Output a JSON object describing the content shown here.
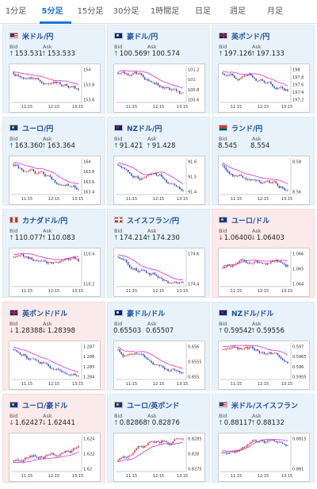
{
  "tabs": [
    {
      "label": "1分足",
      "active": false
    },
    {
      "label": "5分足",
      "active": true
    },
    {
      "label": "15分足",
      "active": false
    },
    {
      "label": "30分足",
      "active": false
    },
    {
      "label": "1時間足",
      "active": false
    },
    {
      "label": "日足",
      "active": false
    },
    {
      "label": "週足",
      "active": false
    },
    {
      "label": "月足",
      "active": false
    }
  ],
  "labels": {
    "bid": "Bid",
    "ask": "Ask"
  },
  "colors": {
    "accent": "#1a73d9",
    "up": "#2a8a4a",
    "down": "#d0403a",
    "up_card": "#e8f2fb",
    "down_card": "#fbeaea",
    "ma_line": "#d52bd5",
    "candle_up": "#e0302a",
    "candle_down": "#2a47c7"
  },
  "pairs": [
    {
      "name": "米ドル/円",
      "flag": "us-flag",
      "bid": "153.531",
      "ask": "153.533",
      "dir": "up",
      "times": [
        "11:15",
        "12:15",
        "13:15"
      ],
      "yticks": [
        "154",
        "153.8",
        "153.6"
      ],
      "trend": "down"
    },
    {
      "name": "豪ドル/円",
      "flag": "au-flag",
      "bid": "100.569",
      "ask": "100.574",
      "dir": "up",
      "times": [
        "11:15",
        "12:15",
        "13:15"
      ],
      "yticks": [
        "101.2",
        "101",
        "100.8",
        "100.6"
      ],
      "trend": "down"
    },
    {
      "name": "英ポンド/円",
      "flag": "uk-flag",
      "bid": "197.126",
      "ask": "197.133",
      "dir": "up",
      "times": [
        "11:15",
        "12:15",
        "13:15"
      ],
      "yticks": [
        "198",
        "197.8",
        "197.6",
        "197.4",
        "197.2"
      ],
      "trend": "down"
    },
    {
      "name": "ユーロ/円",
      "flag": "eu-flag",
      "bid": "163.360",
      "ask": "163.364",
      "dir": "up",
      "times": [
        "11:15",
        "12:15",
        "13:15"
      ],
      "yticks": [
        "164",
        "163.8",
        "163.6",
        "163.4"
      ],
      "trend": "down"
    },
    {
      "name": "NZドル/円",
      "flag": "nz-flag",
      "bid": "91.421",
      "ask": "91.428",
      "dir": "up",
      "times": [
        "11:15",
        "12:15",
        "13:15"
      ],
      "yticks": [
        "91.6",
        "91.5",
        "91.4"
      ],
      "trend": "down"
    },
    {
      "name": "ランド/円",
      "flag": "za-flag",
      "bid": "8.545",
      "ask": "8.554",
      "dir": "none",
      "times": [
        "11:15",
        "12:15",
        "13:15"
      ],
      "yticks": [
        "8.58",
        "8.56"
      ],
      "trend": "down"
    },
    {
      "name": "カナダドル/円",
      "flag": "ca-flag",
      "bid": "110.077",
      "ask": "110.083",
      "dir": "up",
      "times": [
        "11:15",
        "12:15",
        "13:15"
      ],
      "yticks": [
        "110.4",
        "110.2"
      ],
      "trend": "down"
    },
    {
      "name": "スイスフラン/円",
      "flag": "ch-flag",
      "bid": "174.214",
      "ask": "174.230",
      "dir": "up",
      "times": [
        "11:15",
        "12:15",
        "13:15"
      ],
      "yticks": [
        "174.6",
        "174.4"
      ],
      "trend": "down"
    },
    {
      "name": "ユーロ/ドル",
      "flag": "eu-flag",
      "bid": "1.06400",
      "ask": "1.06403",
      "dir": "down",
      "times": [
        "11:15",
        "12:15",
        "13:15"
      ],
      "yticks": [
        "1.066",
        "1.065",
        "1.064"
      ],
      "trend": "flat"
    },
    {
      "name": "英ポンド/ドル",
      "flag": "uk-flag",
      "bid": "1.28388",
      "ask": "1.28398",
      "dir": "down",
      "times": [
        "11:15",
        "12:15",
        "13:15"
      ],
      "yticks": [
        "1.287",
        "1.286",
        "1.285",
        "1.284"
      ],
      "trend": "down"
    },
    {
      "name": "豪ドル/ドル",
      "flag": "au-flag",
      "bid": "0.65503",
      "ask": "0.65507",
      "dir": "none",
      "times": [
        "11:15",
        "12:15",
        "13:15"
      ],
      "yticks": [
        "0.656",
        "0.6555",
        "0.655"
      ],
      "trend": "down"
    },
    {
      "name": "NZドル/ドル",
      "flag": "nz-flag",
      "bid": "0.59542",
      "ask": "0.59556",
      "dir": "up",
      "times": [
        "11:15",
        "12:15",
        "13:15"
      ],
      "yticks": [
        "0.597",
        "0.5965",
        "0.596",
        "0.5955"
      ],
      "trend": "down"
    },
    {
      "name": "ユーロ/豪ドル",
      "flag": "eu-flag",
      "bid": "1.62427",
      "ask": "1.62441",
      "dir": "down",
      "times": [
        "11:15",
        "12:15",
        "13:15"
      ],
      "yticks": [
        "1.624",
        "1.622",
        "1.62"
      ],
      "trend": "up"
    },
    {
      "name": "ユーロ/英ポンド",
      "flag": "eu-flag",
      "bid": "0.82868",
      "ask": "0.82876",
      "dir": "up",
      "times": [
        "11:15",
        "12:15",
        "13:15"
      ],
      "yticks": [
        "0.8285",
        "0.828",
        "0.8275"
      ],
      "trend": "up"
    },
    {
      "name": "米ドル/スイスフラン",
      "flag": "us-flag",
      "bid": "0.88117",
      "ask": "0.88132",
      "dir": "up",
      "times": [
        "11:15",
        "12:15",
        "13:15"
      ],
      "yticks": [
        "0.8815",
        "0.881"
      ],
      "trend": "flat"
    }
  ]
}
